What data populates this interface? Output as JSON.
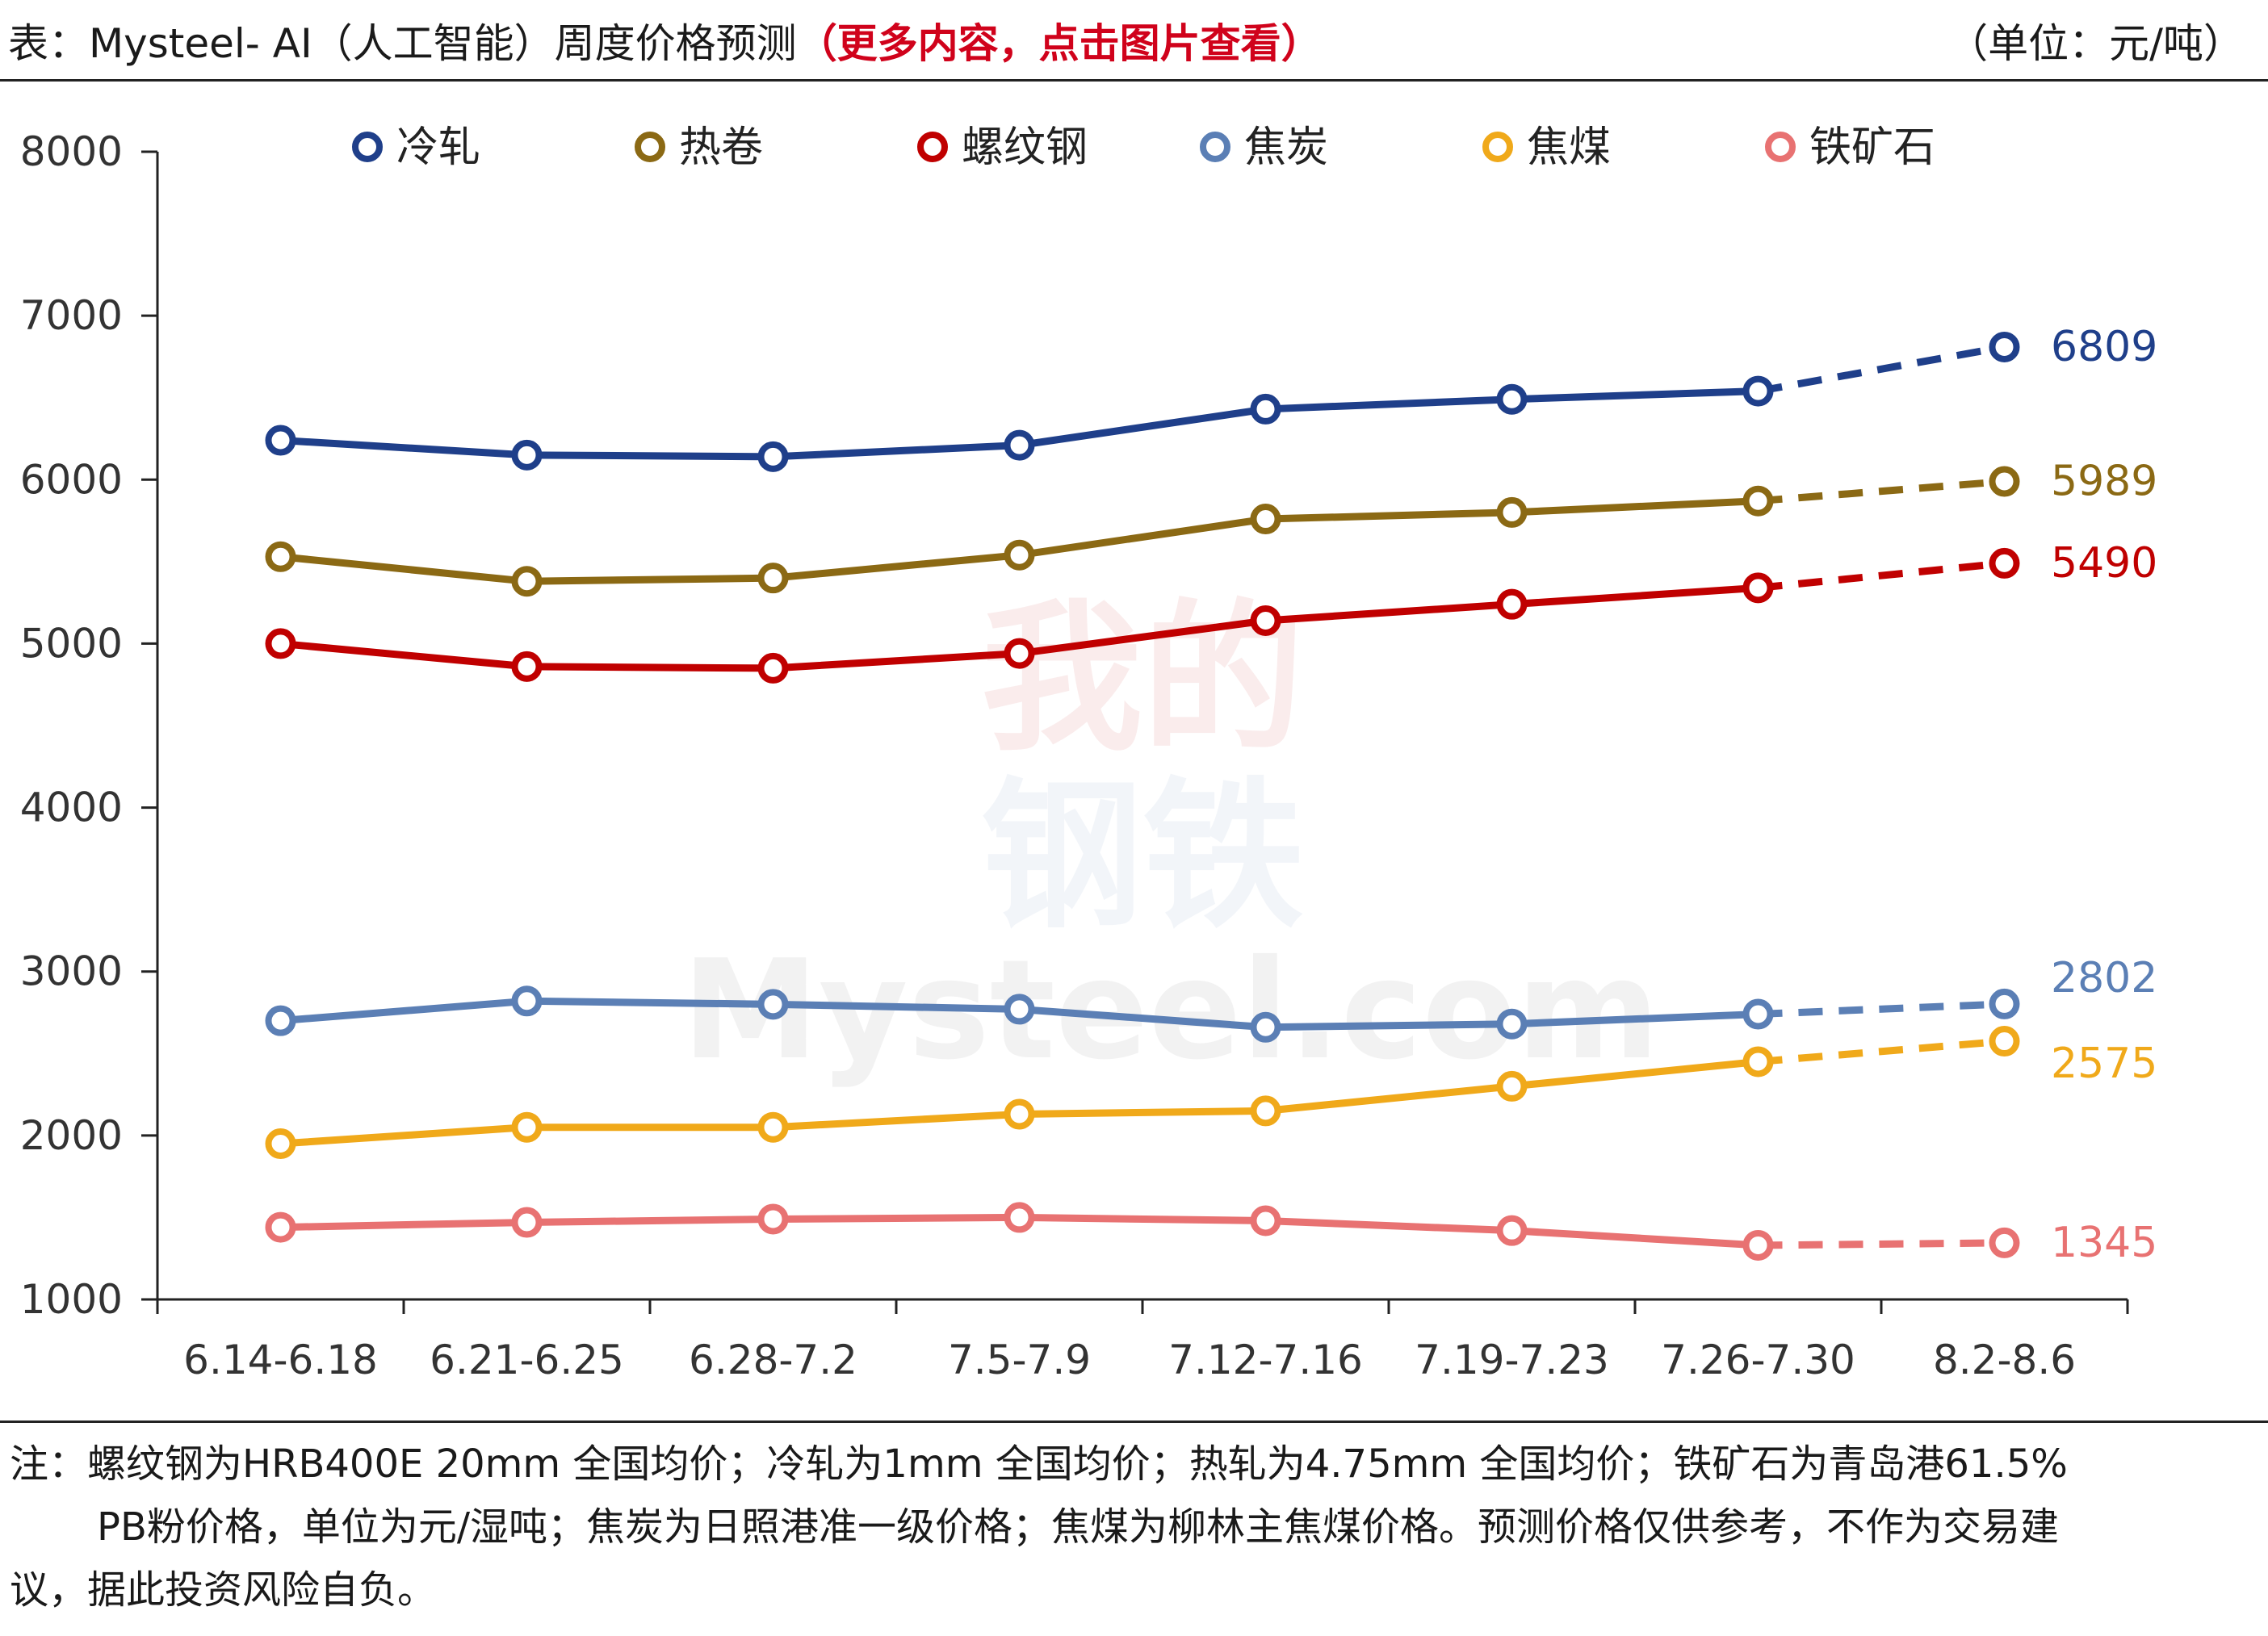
{
  "header": {
    "title": "表：Mysteel- AI（人工智能）周度价格预测",
    "title_highlight": "（更多内容，点击图片查看）",
    "unit": "（单位：元/吨）"
  },
  "watermark": {
    "lines": [
      "我的",
      "钢铁",
      "Mysteel.com"
    ]
  },
  "chart_data": {
    "type": "line",
    "categories": [
      "6.14-6.18",
      "6.21-6.25",
      "6.28-7.2",
      "7.5-7.9",
      "7.12-7.16",
      "7.19-7.23",
      "7.26-7.30",
      "8.2-8.6"
    ],
    "ylim": [
      1000,
      8000
    ],
    "yticks": [
      1000,
      2000,
      3000,
      4000,
      5000,
      6000,
      7000,
      8000
    ],
    "ytick_labels": [
      "1000",
      "2000",
      "3000",
      "4000",
      "5000",
      "6000",
      "7000",
      "8000"
    ],
    "grid": false,
    "legend_position": "top",
    "forecast_from_index": 6,
    "series": [
      {
        "name": "冷轧",
        "color": "#1f3f8a",
        "values": [
          6240,
          6150,
          6140,
          6210,
          6430,
          6490,
          6540,
          6809
        ],
        "end_label": "6809"
      },
      {
        "name": "热卷",
        "color": "#8b6914",
        "values": [
          5530,
          5380,
          5400,
          5540,
          5760,
          5800,
          5870,
          5989
        ],
        "end_label": "5989"
      },
      {
        "name": "螺纹钢",
        "color": "#c00000",
        "values": [
          5000,
          4860,
          4850,
          4940,
          5140,
          5240,
          5340,
          5490
        ],
        "end_label": "5490"
      },
      {
        "name": "焦炭",
        "color": "#5b7fb5",
        "values": [
          2700,
          2820,
          2800,
          2770,
          2660,
          2680,
          2740,
          2802
        ],
        "end_label": "2802"
      },
      {
        "name": "焦煤",
        "color": "#f0a91a",
        "values": [
          1950,
          2050,
          2050,
          2130,
          2150,
          2300,
          2450,
          2575
        ],
        "end_label": "2575"
      },
      {
        "name": "铁矿石",
        "color": "#e87272",
        "values": [
          1440,
          1470,
          1490,
          1500,
          1480,
          1420,
          1330,
          1345
        ],
        "end_label": "1345"
      }
    ]
  },
  "note": {
    "line1": "注：螺纹钢为HRB400E 20mm 全国均价；冷轧为1mm 全国均价；热轧为4.75mm 全国均价；铁矿石为青岛港61.5%",
    "line2": "PB粉价格，单位为元/湿吨；焦炭为日照港准一级价格；焦煤为柳林主焦煤价格。预测价格仅供参考，不作为交易建",
    "line3": "议，据此投资风险自负。"
  }
}
